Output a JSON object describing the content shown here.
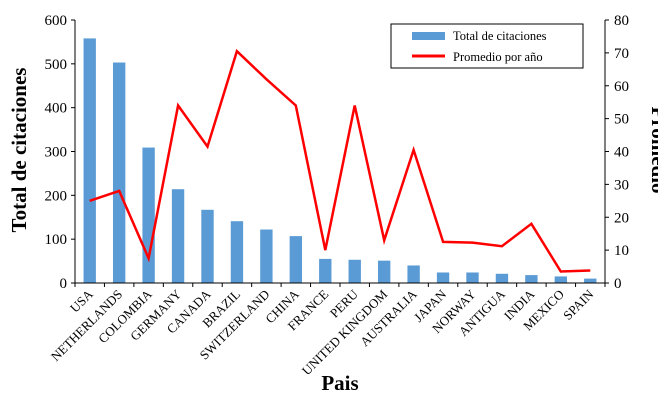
{
  "chart_data": {
    "type": "bar",
    "categories": [
      "USA",
      "NETHERLANDS",
      "COLOMBIA",
      "GERMANY",
      "CANADA",
      "BRAZIL",
      "SWITZERLAND",
      "CHINA",
      "FRANCE",
      "PERU",
      "UNITED KINGDOM",
      "AUSTRALIA",
      "JAPAN",
      "NORWAY",
      "ANTIGUA",
      "INDIA",
      "MEXICO",
      "SPAIN"
    ],
    "series": [
      {
        "name": "Total de citaciones",
        "type": "bar",
        "axis": "left",
        "color": "#5B9BD5",
        "values": [
          558,
          503,
          309,
          214,
          167,
          141,
          122,
          107,
          55,
          53,
          51,
          40,
          24,
          24,
          21,
          18,
          15,
          10
        ]
      },
      {
        "name": "Promedio por año",
        "type": "line",
        "axis": "right",
        "color": "#FF0000",
        "values": [
          25,
          28,
          7.5,
          54,
          41.5,
          70.5,
          62,
          54,
          10,
          54,
          13,
          40.5,
          12.5,
          12.3,
          11.2,
          18,
          3.5,
          3.8
        ]
      }
    ],
    "xlabel": "Pais",
    "ylabel": "Total  de citaciones",
    "y2label": "Promedio",
    "ylim": [
      0,
      600
    ],
    "y2lim": [
      0,
      80
    ],
    "yticks": [
      0,
      100,
      200,
      300,
      400,
      500,
      600
    ],
    "y2ticks": [
      0,
      10,
      20,
      30,
      40,
      50,
      60,
      70,
      80
    ],
    "grid": false,
    "legend_position": "top-right"
  }
}
